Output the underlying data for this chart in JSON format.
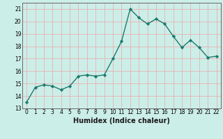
{
  "x": [
    0,
    1,
    2,
    3,
    4,
    5,
    6,
    7,
    8,
    9,
    10,
    11,
    12,
    13,
    14,
    15,
    16,
    17,
    18,
    19,
    20,
    21,
    22
  ],
  "y": [
    13.5,
    14.7,
    14.9,
    14.8,
    14.5,
    14.8,
    15.6,
    15.7,
    15.6,
    15.7,
    17.0,
    18.4,
    21.0,
    20.3,
    19.8,
    20.2,
    19.8,
    18.8,
    17.9,
    18.5,
    17.9,
    17.1,
    17.2
  ],
  "xlabel": "Humidex (Indice chaleur)",
  "line_color": "#1a7a6e",
  "bg_color": "#cceee8",
  "grid_color": "#e8b0b0",
  "ylim": [
    13,
    21.5
  ],
  "xlim": [
    -0.5,
    22.5
  ],
  "yticks": [
    13,
    14,
    15,
    16,
    17,
    18,
    19,
    20,
    21
  ],
  "xticks": [
    0,
    1,
    2,
    3,
    4,
    5,
    6,
    7,
    8,
    9,
    10,
    11,
    12,
    13,
    14,
    15,
    16,
    17,
    18,
    19,
    20,
    21,
    22
  ],
  "marker": "D",
  "markersize": 2.2,
  "linewidth": 1.0,
  "tick_fontsize": 5.5,
  "xlabel_fontsize": 7.0
}
